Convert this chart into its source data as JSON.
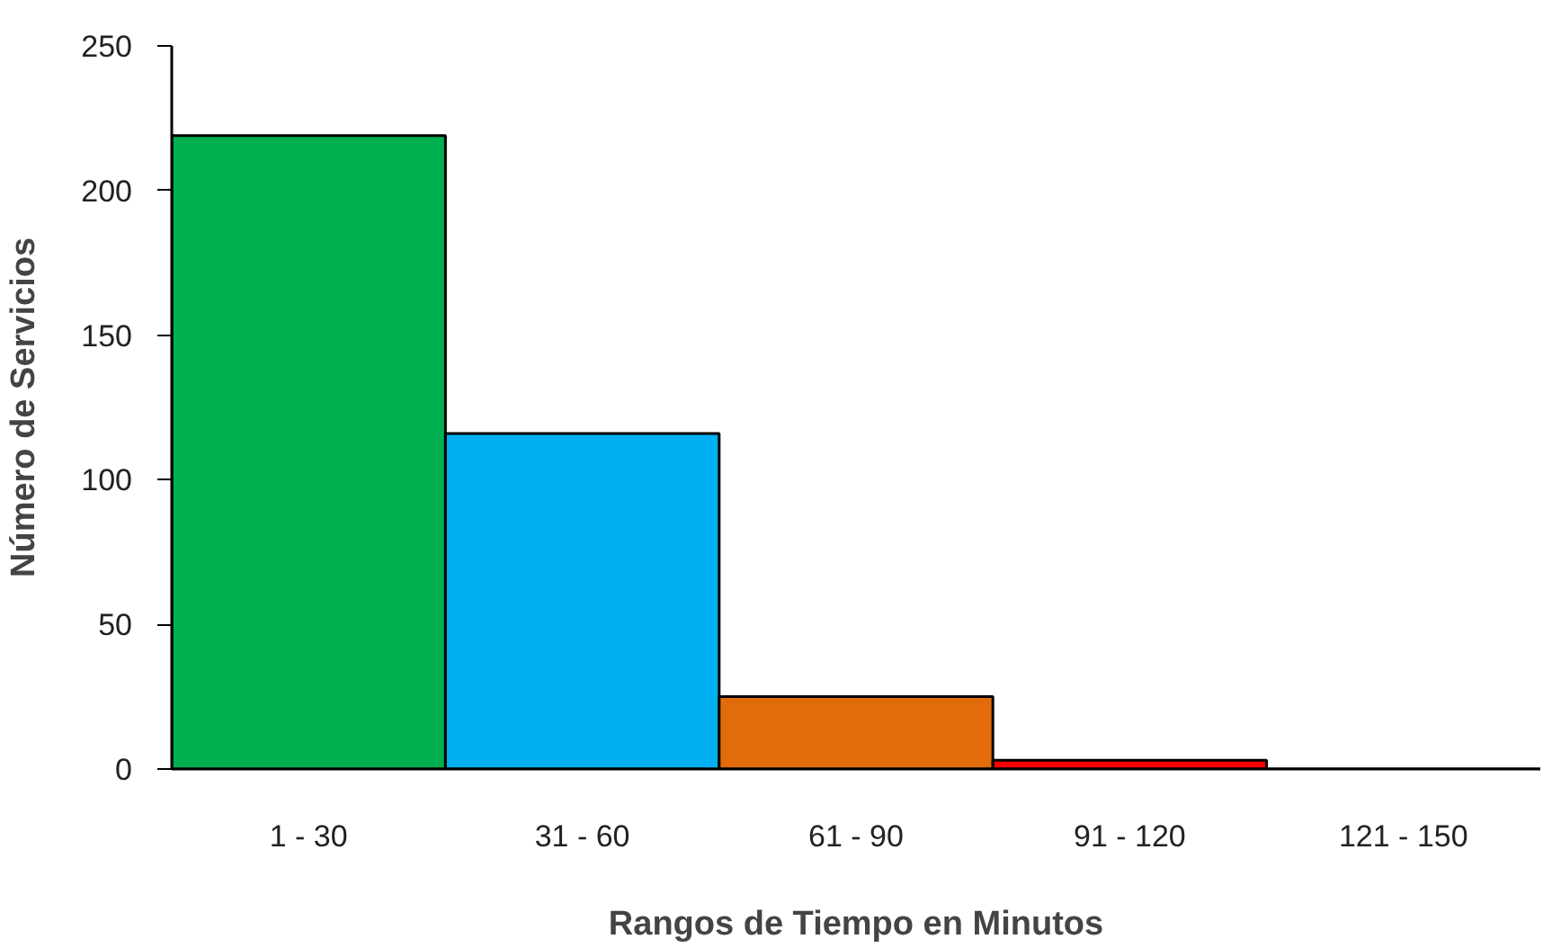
{
  "chart_data": {
    "type": "bar",
    "xlabel": "Rangos de Tiempo en Minutos",
    "ylabel": "Número de Servicios",
    "categories": [
      "1 - 30",
      "31 - 60",
      "61 - 90",
      "91 - 120",
      "121 - 150"
    ],
    "values": [
      219,
      116,
      25,
      3,
      0
    ],
    "colors": [
      "#00b050",
      "#00b0f0",
      "#e36c0a",
      "#ff0000",
      "#ffff00"
    ],
    "ylim": [
      0,
      250
    ],
    "yticks": [
      0,
      50,
      100,
      150,
      200,
      250
    ],
    "grid": false
  }
}
